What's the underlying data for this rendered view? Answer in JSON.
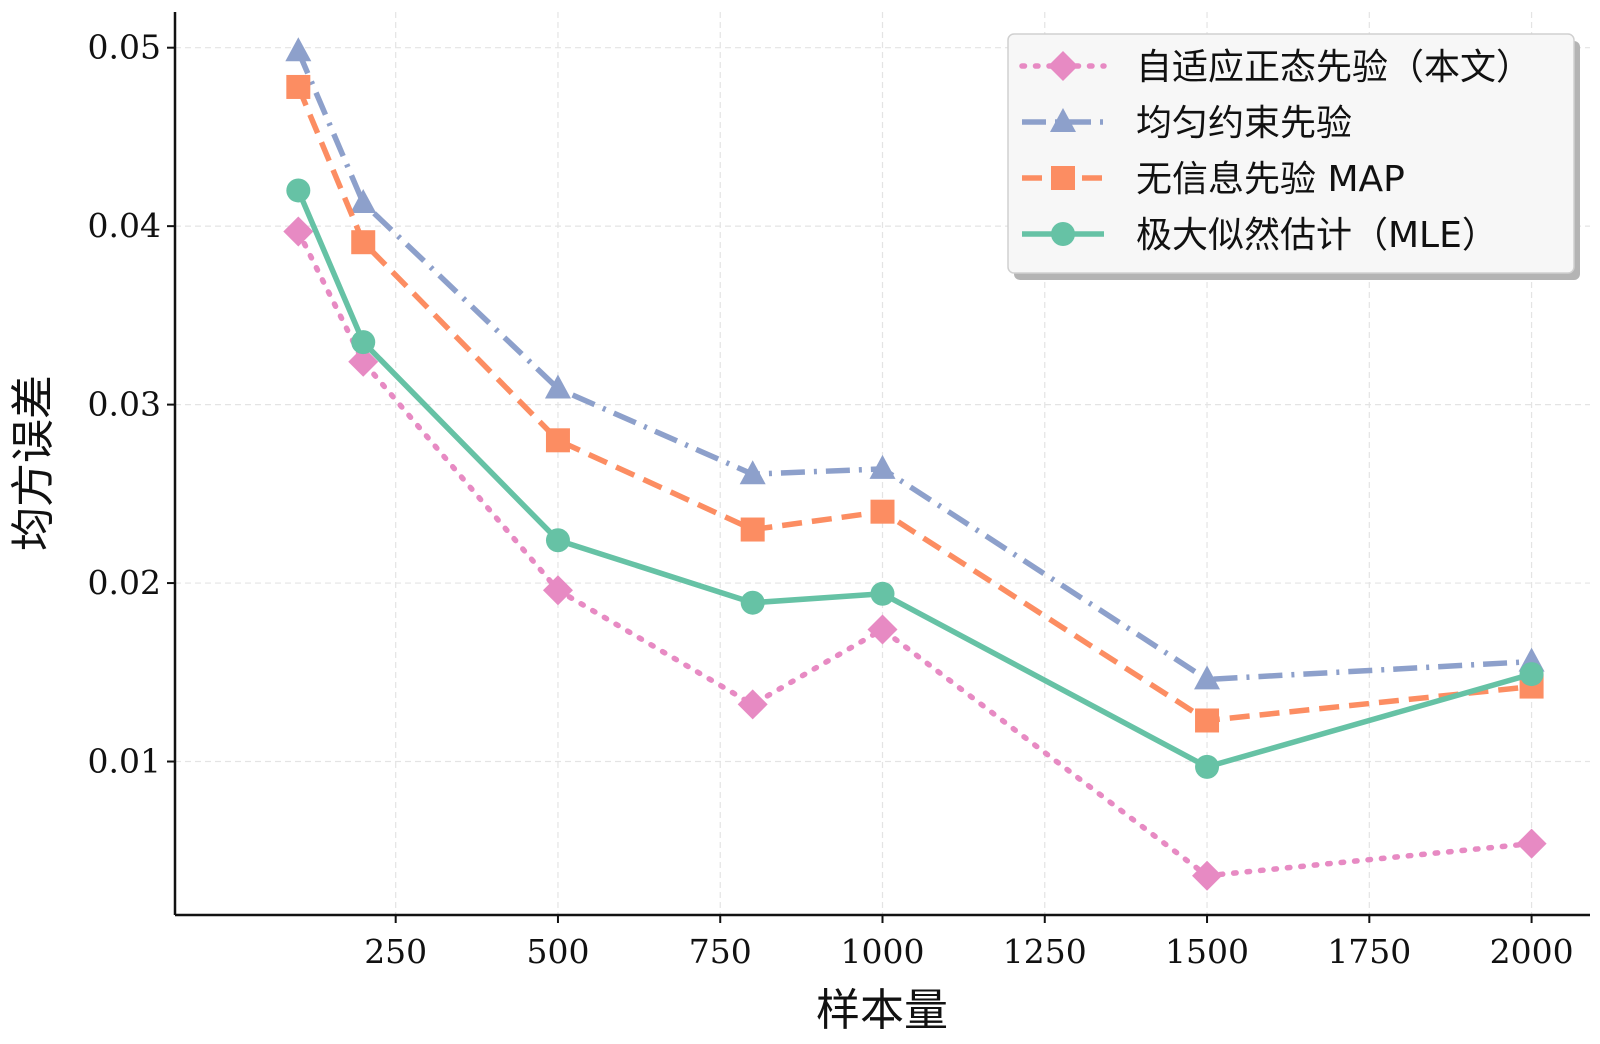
{
  "chart_data": {
    "type": "line",
    "title": "",
    "xlabel": "样本量",
    "ylabel": "均方误差",
    "x": [
      100,
      200,
      500,
      800,
      1000,
      1500,
      2000
    ],
    "xlim": [
      -90,
      2090
    ],
    "ylim": [
      0.0014,
      0.052
    ],
    "xticks": [
      250,
      500,
      750,
      1000,
      1250,
      1500,
      1750,
      2000
    ],
    "xtick_labels": [
      "250",
      "500",
      "750",
      "1000",
      "1250",
      "1500",
      "1750",
      "2000"
    ],
    "yticks": [
      0.01,
      0.02,
      0.03,
      0.04,
      0.05
    ],
    "ytick_labels": [
      "0.01",
      "0.02",
      "0.03",
      "0.04",
      "0.05"
    ],
    "grid": true,
    "legend_position": "top-right",
    "series": [
      {
        "name": "自适应正态先验（本文）",
        "values": [
          0.0397,
          0.0324,
          0.0196,
          0.0132,
          0.0174,
          0.0036,
          0.0054
        ],
        "color": "#e78ac3",
        "linestyle": "dotted",
        "marker": "diamond"
      },
      {
        "name": "均匀约束先验",
        "values": [
          0.0498,
          0.0413,
          0.0309,
          0.0261,
          0.0264,
          0.0146,
          0.0156
        ],
        "color": "#8da0cb",
        "linestyle": "dashdot",
        "marker": "triangle"
      },
      {
        "name": "无信息先验 MAP",
        "values": [
          0.0478,
          0.0391,
          0.028,
          0.023,
          0.024,
          0.0123,
          0.0142
        ],
        "color": "#fc8d62",
        "linestyle": "dashed",
        "marker": "square"
      },
      {
        "name": "极大似然估计（MLE）",
        "values": [
          0.042,
          0.0335,
          0.0224,
          0.0189,
          0.0194,
          0.0097,
          0.0149
        ],
        "color": "#66c2a5",
        "linestyle": "solid",
        "marker": "circle"
      }
    ]
  }
}
